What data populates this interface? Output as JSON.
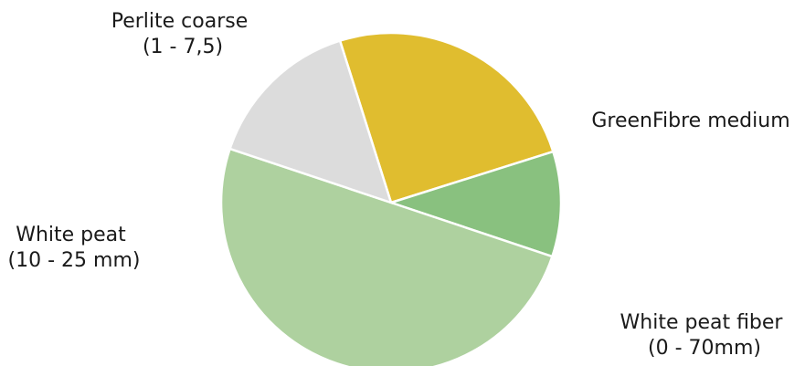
{
  "chart_data": {
    "type": "pie",
    "title": "",
    "start_angle_deg": -17.5,
    "direction": "clockwise",
    "legend": "none",
    "slices": [
      {
        "label_lines": [
          "GreenFibre medium"
        ],
        "value": 25,
        "color": "#e0bd2f"
      },
      {
        "label_lines": [
          "White peat fiber",
          "(0 - 70mm)"
        ],
        "value": 10,
        "color": "#89c17f"
      },
      {
        "label_lines": [
          "White peat",
          "(10 - 25 mm)"
        ],
        "value": 50,
        "color": "#aed19f"
      },
      {
        "label_lines": [
          "Perlite coarse",
          "(1 - 7,5)"
        ],
        "value": 15,
        "color": "#dcdcdc"
      }
    ]
  }
}
